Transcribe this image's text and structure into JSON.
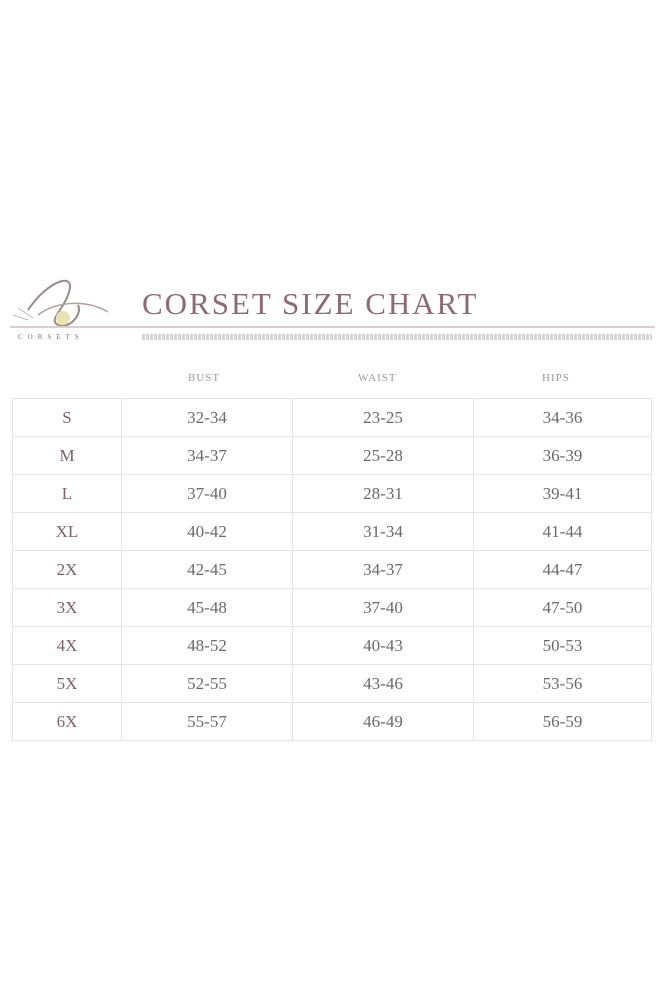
{
  "header": {
    "brand": "CORSETS",
    "title": "CORSET SIZE CHART",
    "brand_color": "#8e6a72"
  },
  "table": {
    "columns": [
      "BUST",
      "WAIST",
      "HIPS"
    ],
    "rows": [
      {
        "size": "S",
        "bust": "32-34",
        "waist": "23-25",
        "hips": "34-36"
      },
      {
        "size": "M",
        "bust": "34-37",
        "waist": "25-28",
        "hips": "36-39"
      },
      {
        "size": "L",
        "bust": "37-40",
        "waist": "28-31",
        "hips": "39-41"
      },
      {
        "size": "XL",
        "bust": "40-42",
        "waist": "31-34",
        "hips": "41-44"
      },
      {
        "size": "2X",
        "bust": "42-45",
        "waist": "34-37",
        "hips": "44-47"
      },
      {
        "size": "3X",
        "bust": "45-48",
        "waist": "37-40",
        "hips": "47-50"
      },
      {
        "size": "4X",
        "bust": "48-52",
        "waist": "40-43",
        "hips": "50-53"
      },
      {
        "size": "5X",
        "bust": "52-55",
        "waist": "43-46",
        "hips": "53-56"
      },
      {
        "size": "6X",
        "bust": "55-57",
        "waist": "46-49",
        "hips": "56-59"
      }
    ]
  }
}
